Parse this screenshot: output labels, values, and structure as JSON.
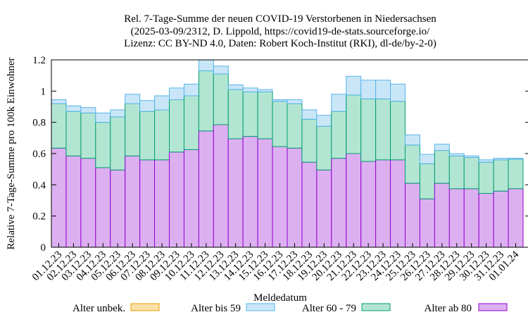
{
  "chart_data": {
    "type": "bar",
    "stacked": true,
    "title": [
      "Rel. 7-Tage-Summe der neuen COVID-19 Verstorbenen in Niedersachsen",
      "(2025-03-09/2312, D. Lippold, https://covid19-de-stats.sourceforge.io/",
      "Lizenz: CC BY-ND 4.0, Daten: Robert Koch-Institut (RKI), dl-de/by-2-0)"
    ],
    "xlabel": "Meldedatum",
    "ylabel": "Relative 7-Tage-Summe pro 100k Einwohner",
    "ylim": [
      0,
      1.2
    ],
    "yticks": [
      0,
      0.2,
      0.4,
      0.6,
      0.8,
      1,
      1.2
    ],
    "ytick_labels": [
      "0",
      "0.2",
      "0.4",
      "0.6",
      "0.8",
      "1",
      "1.2"
    ],
    "grid": false,
    "legend_position": "bottom",
    "categories": [
      "01.12.23",
      "02.12.23",
      "03.12.23",
      "04.12.23",
      "05.12.23",
      "06.12.23",
      "07.12.23",
      "08.12.23",
      "09.12.23",
      "10.12.23",
      "11.12.23",
      "12.12.23",
      "13.12.23",
      "14.12.23",
      "15.12.23",
      "16.12.23",
      "17.12.23",
      "18.12.23",
      "19.12.23",
      "20.12.23",
      "21.12.23",
      "22.12.23",
      "23.12.23",
      "24.12.23",
      "25.12.23",
      "26.12.23",
      "27.12.23",
      "28.12.23",
      "29.12.23",
      "30.12.23",
      "31.12.23",
      "01.01.24"
    ],
    "series": [
      {
        "name": "Alter ab 80",
        "fill": "#dcb0f0",
        "stroke": "#9400d3",
        "values": [
          0.635,
          0.585,
          0.57,
          0.51,
          0.495,
          0.585,
          0.56,
          0.56,
          0.61,
          0.625,
          0.745,
          0.785,
          0.695,
          0.71,
          0.695,
          0.645,
          0.635,
          0.545,
          0.495,
          0.57,
          0.6,
          0.55,
          0.56,
          0.56,
          0.41,
          0.31,
          0.41,
          0.375,
          0.375,
          0.345,
          0.36,
          0.375
        ]
      },
      {
        "name": "Alter 60 - 79",
        "fill": "#b3e6d2",
        "stroke": "#009e73",
        "values": [
          0.285,
          0.285,
          0.29,
          0.29,
          0.34,
          0.335,
          0.31,
          0.32,
          0.335,
          0.345,
          0.385,
          0.325,
          0.315,
          0.285,
          0.3,
          0.29,
          0.285,
          0.275,
          0.28,
          0.3,
          0.375,
          0.4,
          0.39,
          0.375,
          0.245,
          0.225,
          0.21,
          0.21,
          0.2,
          0.2,
          0.2,
          0.19
        ]
      },
      {
        "name": "Alter bis 59",
        "fill": "#c9e6f8",
        "stroke": "#56b4e9",
        "values": [
          0.025,
          0.035,
          0.035,
          0.06,
          0.045,
          0.06,
          0.07,
          0.09,
          0.075,
          0.075,
          0.07,
          0.05,
          0.03,
          0.025,
          0.015,
          0.01,
          0.025,
          0.06,
          0.07,
          0.11,
          0.12,
          0.12,
          0.12,
          0.11,
          0.065,
          0.06,
          0.04,
          0.015,
          0.01,
          0.015,
          0.01,
          0.005
        ]
      },
      {
        "name": "Alter unbek.",
        "fill": "#fbe0a8",
        "stroke": "#e69f00",
        "values": [
          0,
          0,
          0,
          0,
          0,
          0,
          0,
          0,
          0,
          0,
          0,
          0,
          0,
          0,
          0,
          0,
          0,
          0,
          0,
          0,
          0,
          0,
          0,
          0,
          0,
          0,
          0,
          0,
          0,
          0,
          0,
          0
        ]
      }
    ],
    "legend": [
      {
        "name": "Alter unbek.",
        "fill": "#fbe0a8",
        "stroke": "#e69f00"
      },
      {
        "name": "Alter bis 59",
        "fill": "#c9e6f8",
        "stroke": "#56b4e9"
      },
      {
        "name": "Alter 60 - 79",
        "fill": "#b3e6d2",
        "stroke": "#009e73"
      },
      {
        "name": "Alter ab 80",
        "fill": "#dcb0f0",
        "stroke": "#9400d3"
      }
    ]
  }
}
